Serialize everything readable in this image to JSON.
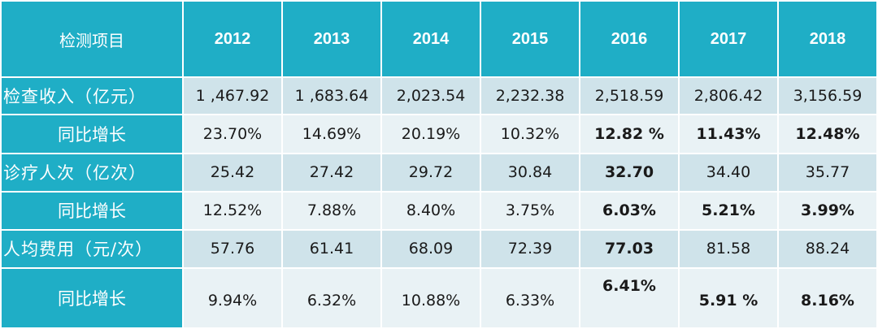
{
  "table": {
    "header_label": "检测项目",
    "years": [
      "2012",
      "2013",
      "2014",
      "2015",
      "2016",
      "2017",
      "2018"
    ],
    "rows": [
      {
        "label": "检查收入（亿元）",
        "values": [
          "1 ,467.92",
          "1 ,683.64",
          "2,023.54",
          "2,232.38",
          "2,518.59",
          "2,806.42",
          "3,156.59"
        ]
      },
      {
        "label": "同比增长",
        "values": [
          "23.70%",
          "14.69%",
          "20.19%",
          "10.32%",
          "12.82 %",
          "11.43%",
          "12.48%"
        ]
      },
      {
        "label": "诊疗人次（亿次）",
        "values": [
          "25.42",
          "27.42",
          "29.72",
          "30.84",
          "32.70",
          "34.40",
          "35.77"
        ]
      },
      {
        "label": "同比增长",
        "values": [
          "12.52%",
          "7.88%",
          "8.40%",
          "3.75%",
          "6.03%",
          "5.21%",
          "3.99%"
        ]
      },
      {
        "label": "人均费用（元/次）",
        "values": [
          "57.76",
          "61.41",
          "68.09",
          "72.39",
          "77.03",
          "81.58",
          "88.24"
        ]
      },
      {
        "label": "同比增长",
        "values": [
          "9.94%",
          "6.32%",
          "10.88%",
          "6.33%",
          "6.41%",
          "5.91 %",
          "8.16%"
        ]
      }
    ]
  },
  "colors": {
    "header_bg": "#1faec6",
    "row_dark": "#cfe3ea",
    "row_light": "#e9f2f5"
  },
  "chart_data": {
    "type": "table",
    "columns": [
      "2012",
      "2013",
      "2014",
      "2015",
      "2016",
      "2017",
      "2018"
    ],
    "series": [
      {
        "name": "检查收入（亿元）",
        "values": [
          1467.92,
          1683.64,
          2023.54,
          2232.38,
          2518.59,
          2806.42,
          3156.59
        ]
      },
      {
        "name": "同比增长",
        "values": [
          23.7,
          14.69,
          20.19,
          10.32,
          12.82,
          11.43,
          12.48
        ]
      },
      {
        "name": "诊疗人次（亿次）",
        "values": [
          25.42,
          27.42,
          29.72,
          30.84,
          32.7,
          34.4,
          35.77
        ]
      },
      {
        "name": "同比增长",
        "values": [
          12.52,
          7.88,
          8.4,
          3.75,
          6.03,
          5.21,
          3.99
        ]
      },
      {
        "name": "人均费用（元/次）",
        "values": [
          57.76,
          61.41,
          68.09,
          72.39,
          77.03,
          81.58,
          88.24
        ]
      },
      {
        "name": "同比增长",
        "values": [
          9.94,
          6.32,
          10.88,
          6.33,
          6.41,
          5.91,
          8.16
        ]
      }
    ]
  }
}
